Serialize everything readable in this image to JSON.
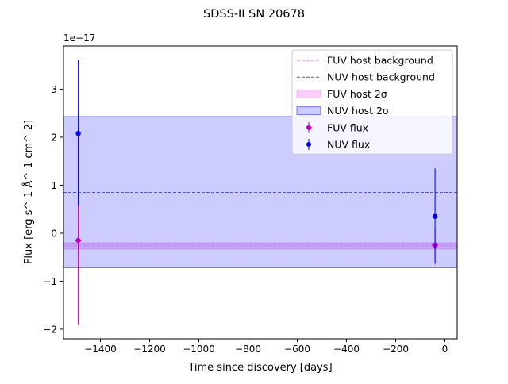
{
  "chart_data": {
    "type": "scatter",
    "title": "SDSS-II SN 20678",
    "xlabel": "Time since discovery [days]",
    "ylabel": "Flux [erg s^-1 Å^-1 cm^-2]",
    "y_offset_label": "1e−17",
    "xlim": [
      -1550,
      50
    ],
    "ylim": [
      -2.2,
      3.9
    ],
    "x_ticks": [
      -1400,
      -1200,
      -1000,
      -800,
      -600,
      -400,
      -200,
      0
    ],
    "x_tick_labels": [
      "−1400",
      "−1200",
      "−1000",
      "−800",
      "−600",
      "−400",
      "−200",
      "0"
    ],
    "y_ticks": [
      -2,
      -1,
      0,
      1,
      2,
      3
    ],
    "y_tick_labels": [
      "−2",
      "−1",
      "0",
      "1",
      "2",
      "3"
    ],
    "grid": false,
    "legend_position": "top-right",
    "bands": [
      {
        "name": "FUV host 2σ",
        "low": -0.33,
        "high": -0.2,
        "color": "#ee82ee",
        "opacity": 0.4
      },
      {
        "name": "NUV host 2σ",
        "low": -0.72,
        "high": 2.43,
        "color": "#0000ff",
        "opacity": 0.2
      }
    ],
    "background_lines": [
      {
        "name": "FUV host background",
        "y": -0.26,
        "color": "#ee66ee"
      },
      {
        "name": "NUV host background",
        "y": 0.85,
        "color": "#5555dd"
      }
    ],
    "series": [
      {
        "name": "FUV flux",
        "marker": "diamond",
        "color": "#bf00bf",
        "points": [
          {
            "x": -1490,
            "y": -0.15,
            "err_low": -1.92,
            "err_high": 2.15
          },
          {
            "x": -40,
            "y": -0.25,
            "err_low": -0.65,
            "err_high": 0.12
          }
        ]
      },
      {
        "name": "NUV flux",
        "marker": "circle",
        "color": "#0000ee",
        "points": [
          {
            "x": -1490,
            "y": 2.08,
            "err_low": 0.57,
            "err_high": 3.62
          },
          {
            "x": -40,
            "y": 0.35,
            "err_low": -0.62,
            "err_high": 1.35
          }
        ]
      }
    ],
    "legend": [
      {
        "label": "FUV host background",
        "kind": "line",
        "color": "#ee66ee"
      },
      {
        "label": "NUV host background",
        "kind": "line",
        "color": "#5555dd"
      },
      {
        "label": "FUV host 2σ",
        "kind": "patch",
        "color": "#ee82ee",
        "opacity": 0.4
      },
      {
        "label": "NUV host 2σ",
        "kind": "patch",
        "color": "#0000ff",
        "opacity": 0.2
      },
      {
        "label": "FUV flux",
        "kind": "diamond",
        "color": "#bf00bf"
      },
      {
        "label": "NUV flux",
        "kind": "circle",
        "color": "#0000ee"
      }
    ]
  }
}
